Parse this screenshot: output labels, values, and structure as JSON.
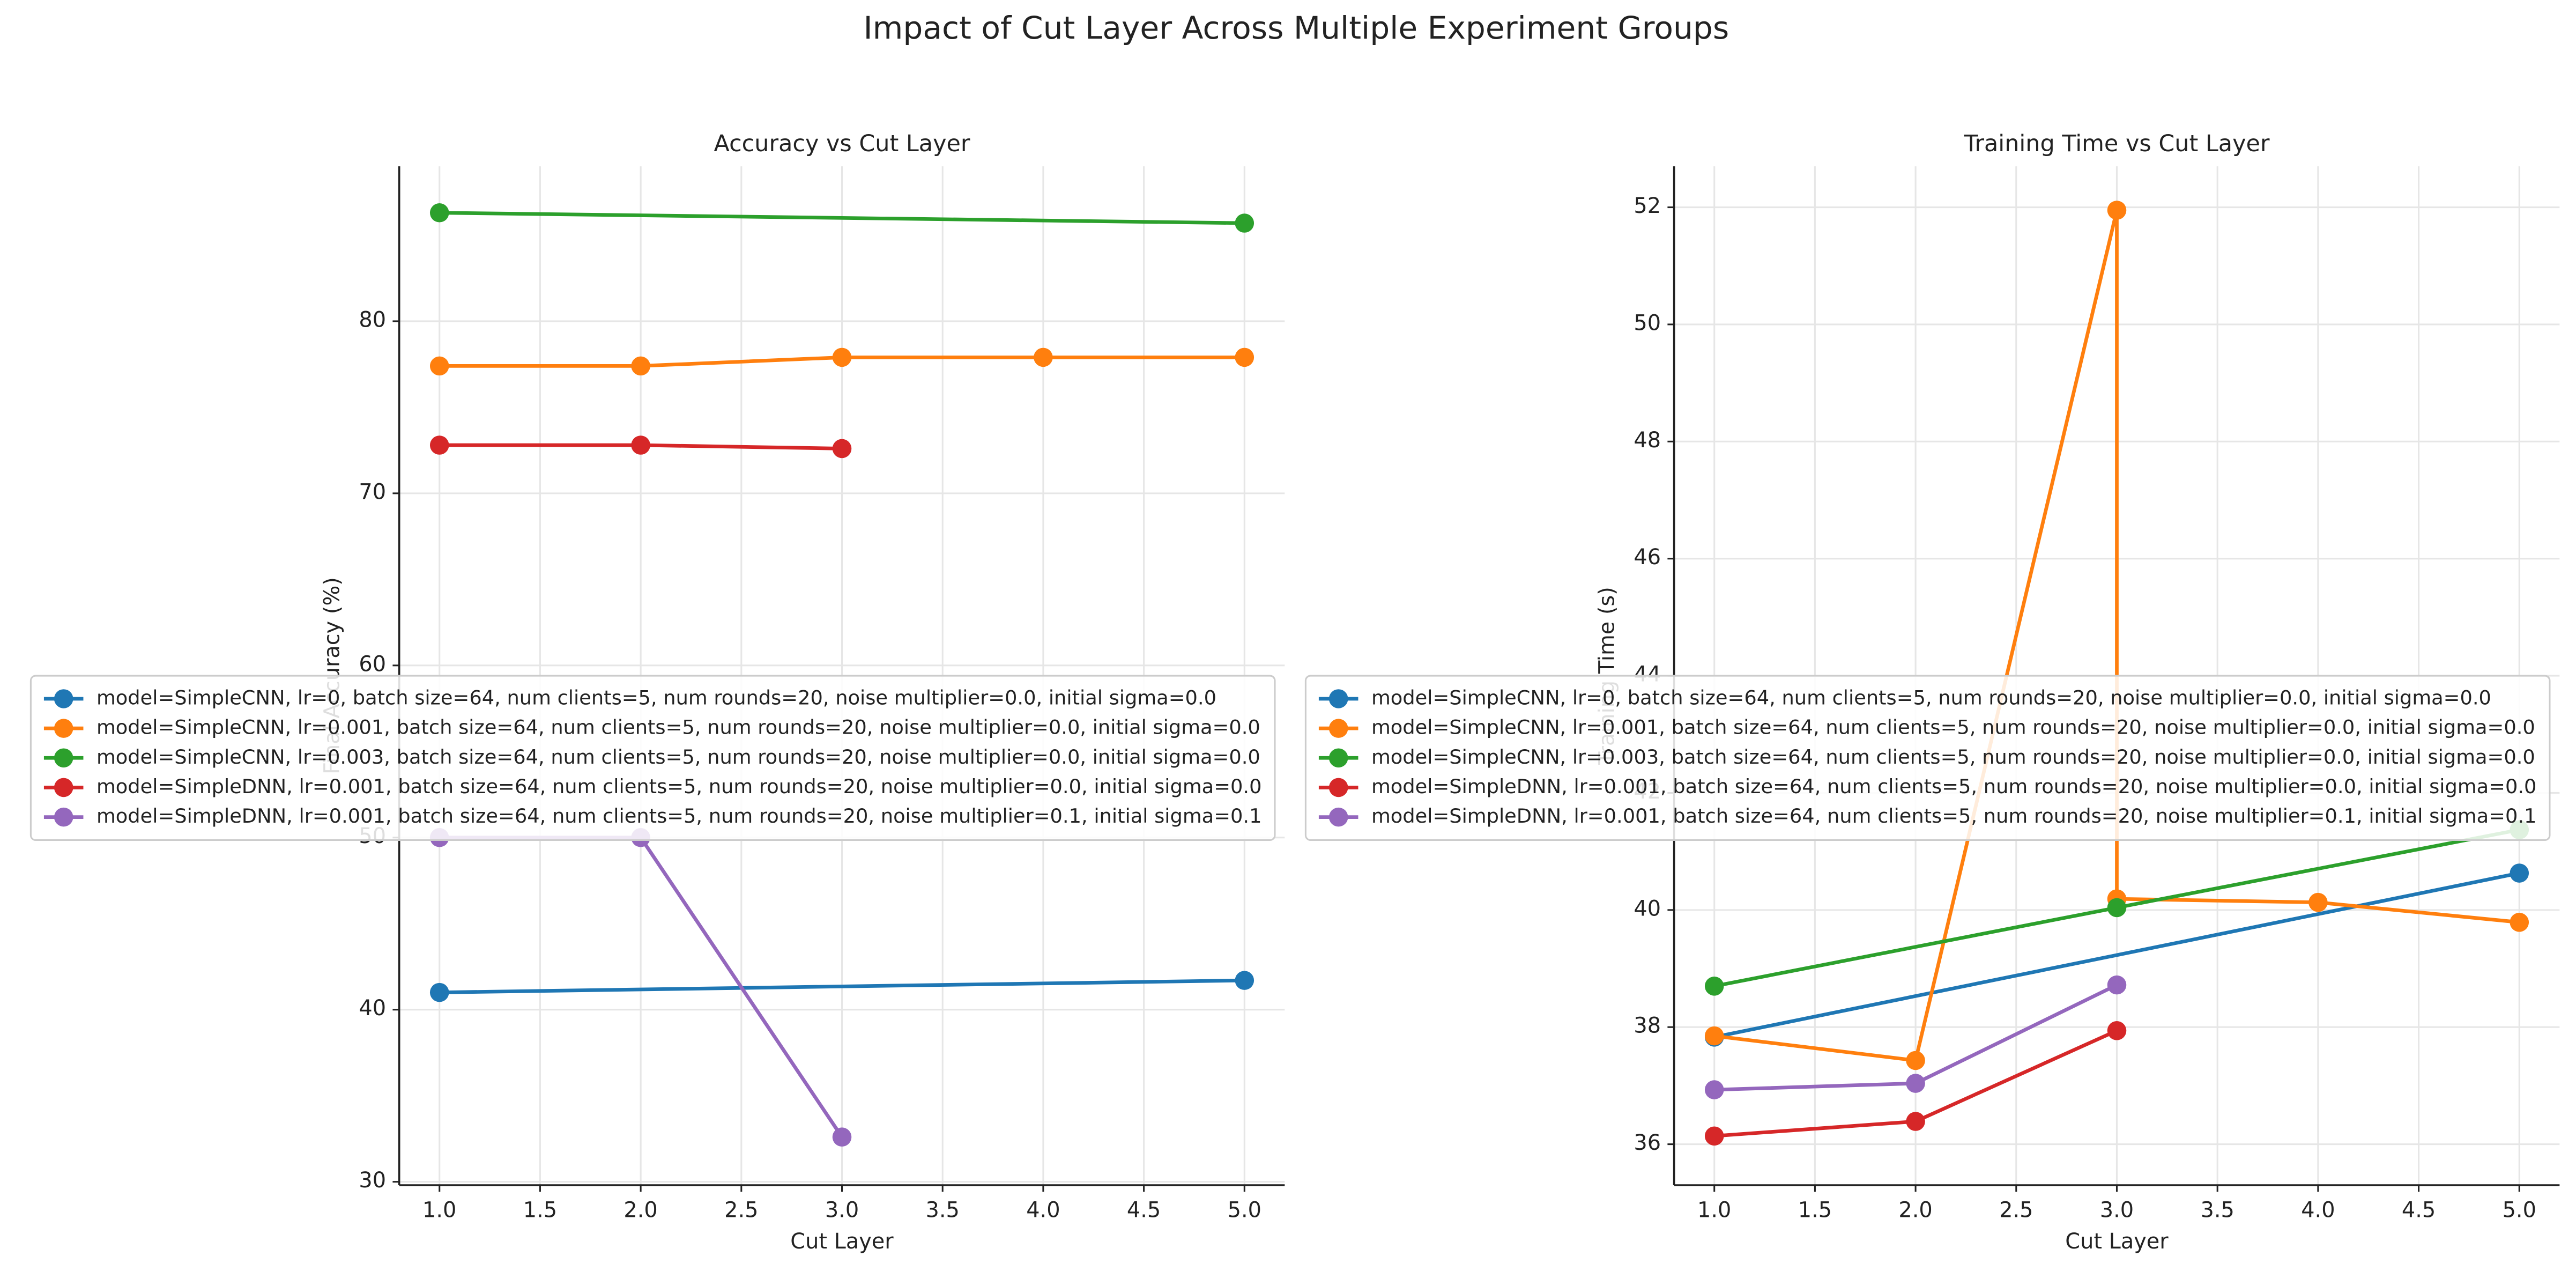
{
  "title": "Impact of Cut Layer Across Multiple Experiment Groups",
  "chart_data": [
    {
      "type": "line",
      "title": "Accuracy vs Cut Layer",
      "x_label": "Cut Layer",
      "y_label": "Final Accuracy (%)",
      "xlim": [
        0.8,
        5.2
      ],
      "ylim": [
        29.8,
        89
      ],
      "xticks": [
        {
          "value": 1,
          "label": "1.0"
        },
        {
          "value": 1.5,
          "label": "1.5"
        },
        {
          "value": 2,
          "label": "2.0"
        },
        {
          "value": 2.5,
          "label": "2.5"
        },
        {
          "value": 3,
          "label": "3.0"
        },
        {
          "value": 3.5,
          "label": "3.5"
        },
        {
          "value": 4,
          "label": "4.0"
        },
        {
          "value": 4.5,
          "label": "4.5"
        },
        {
          "value": 5,
          "label": "5.0"
        }
      ],
      "yticks": [
        30,
        40,
        50,
        60,
        70,
        80
      ],
      "grid": true,
      "legend": "center right",
      "series": [
        {
          "name": "model=SimpleCNN, lr=0, batch size=64, num clients=5, num rounds=20, noise multiplier=0.0, initial sigma=0.0",
          "color": "#1f77b4",
          "x": [
            1,
            5
          ],
          "values": [
            41.0,
            41.7
          ]
        },
        {
          "name": "model=SimpleCNN, lr=0.001, batch size=64, num clients=5, num rounds=20, noise multiplier=0.0, initial sigma=0.0",
          "color": "#ff7f0e",
          "x": [
            1,
            2,
            3,
            4,
            5
          ],
          "values": [
            77.4,
            77.4,
            77.9,
            77.9,
            77.9
          ]
        },
        {
          "name": "model=SimpleCNN, lr=0.003, batch size=64, num clients=5, num rounds=20, noise multiplier=0.0, initial sigma=0.0",
          "color": "#2ca02c",
          "x": [
            1,
            5
          ],
          "values": [
            86.3,
            85.7
          ]
        },
        {
          "name": "model=SimpleDNN, lr=0.001, batch size=64, num clients=5, num rounds=20, noise multiplier=0.0, initial sigma=0.0",
          "color": "#d62728",
          "x": [
            1,
            2,
            3
          ],
          "values": [
            72.8,
            72.8,
            72.6
          ]
        },
        {
          "name": "model=SimpleDNN, lr=0.001, batch size=64, num clients=5, num rounds=20, noise multiplier=0.1, initial sigma=0.1",
          "color": "#9467bd",
          "x": [
            1,
            2,
            3
          ],
          "values": [
            50.0,
            50.0,
            32.6
          ]
        }
      ]
    },
    {
      "type": "line",
      "title": "Training Time vs Cut Layer",
      "x_label": "Cut Layer",
      "y_label": "Training Time (s)",
      "xlim": [
        0.8,
        5.2
      ],
      "ylim": [
        35.3,
        52.7
      ],
      "xticks": [
        {
          "value": 1,
          "label": "1.0"
        },
        {
          "value": 1.5,
          "label": "1.5"
        },
        {
          "value": 2,
          "label": "2.0"
        },
        {
          "value": 2.5,
          "label": "2.5"
        },
        {
          "value": 3,
          "label": "3.0"
        },
        {
          "value": 3.5,
          "label": "3.5"
        },
        {
          "value": 4,
          "label": "4.0"
        },
        {
          "value": 4.5,
          "label": "4.5"
        },
        {
          "value": 5,
          "label": "5.0"
        }
      ],
      "yticks": [
        36,
        38,
        40,
        42,
        44,
        46,
        48,
        50,
        52
      ],
      "grid": true,
      "legend": "center right",
      "series": [
        {
          "name": "model=SimpleCNN, lr=0, batch size=64, num clients=5, num rounds=20, noise multiplier=0.0, initial sigma=0.0",
          "color": "#1f77b4",
          "x": [
            1,
            5
          ],
          "values": [
            37.83,
            40.63
          ]
        },
        {
          "name": "model=SimpleCNN, lr=0.001, batch size=64, num clients=5, num rounds=20, noise multiplier=0.0, initial sigma=0.0",
          "color": "#ff7f0e",
          "x": [
            1,
            2,
            3,
            3,
            4,
            5
          ],
          "values": [
            37.85,
            37.43,
            51.95,
            40.19,
            40.13,
            39.79
          ]
        },
        {
          "name": "model=SimpleCNN, lr=0.003, batch size=64, num clients=5, num rounds=20, noise multiplier=0.0, initial sigma=0.0",
          "color": "#2ca02c",
          "x": [
            1,
            3,
            5
          ],
          "values": [
            38.7,
            40.04,
            41.37
          ]
        },
        {
          "name": "model=SimpleDNN, lr=0.001, batch size=64, num clients=5, num rounds=20, noise multiplier=0.0, initial sigma=0.0",
          "color": "#d62728",
          "x": [
            1,
            2,
            3
          ],
          "values": [
            36.14,
            36.39,
            37.94
          ]
        },
        {
          "name": "model=SimpleDNN, lr=0.001, batch size=64, num clients=5, num rounds=20, noise multiplier=0.1, initial sigma=0.1",
          "color": "#9467bd",
          "x": [
            1,
            2,
            3
          ],
          "values": [
            36.93,
            37.04,
            38.72
          ]
        }
      ]
    }
  ]
}
